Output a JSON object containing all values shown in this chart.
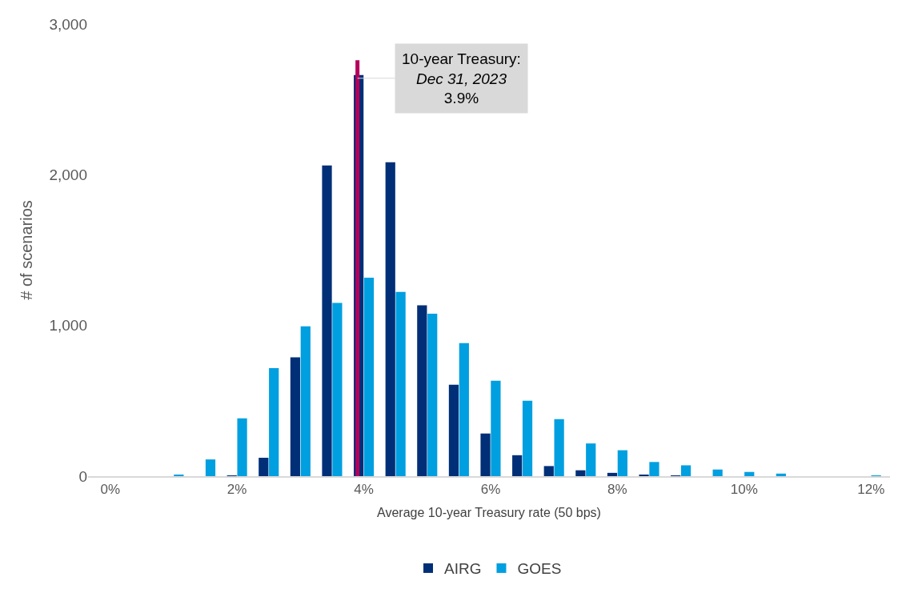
{
  "chart_data": {
    "type": "bar",
    "xlabel": "Average 10-year Treasury rate (50 bps)",
    "ylabel": "# of scenarios",
    "x": [
      0,
      0.5,
      1,
      1.5,
      2,
      2.5,
      3,
      3.5,
      4,
      4.5,
      5,
      5.5,
      6,
      6.5,
      7,
      7.5,
      8,
      8.5,
      9,
      9.5,
      10,
      10.5,
      11,
      11.5,
      12
    ],
    "series": [
      {
        "name": "AIRG",
        "color": "#002f77",
        "values": [
          0,
          0,
          0,
          0,
          3,
          122,
          789,
          2061,
          2661,
          2083,
          1133,
          606,
          283,
          139,
          67,
          39,
          22,
          8,
          2,
          0,
          0,
          0,
          0,
          0,
          0
        ]
      },
      {
        "name": "GOES",
        "color": "#009fe0",
        "values": [
          0,
          0,
          10,
          111,
          383,
          717,
          994,
          1150,
          1317,
          1222,
          1078,
          883,
          633,
          500,
          378,
          217,
          172,
          94,
          72,
          44,
          28,
          17,
          0,
          0,
          3
        ]
      }
    ],
    "xlim": [
      -0.35,
      12.3
    ],
    "xticks": [
      {
        "value": 0,
        "label": "0%"
      },
      {
        "value": 2,
        "label": "2%"
      },
      {
        "value": 4,
        "label": "4%"
      },
      {
        "value": 6,
        "label": "6%"
      },
      {
        "value": 8,
        "label": "8%"
      },
      {
        "value": 10,
        "label": "10%"
      },
      {
        "value": 12,
        "label": "12%"
      }
    ],
    "ylim": [
      0,
      3000
    ],
    "yticks": [
      0,
      {
        "value": 1000,
        "label": "1,000"
      },
      {
        "value": 2000,
        "label": "2,000"
      },
      {
        "value": 3000,
        "label": "3,000"
      }
    ],
    "ref_lines": [
      {
        "axis": "x",
        "value": 3.9,
        "label": "10-year Treasury:\nDec 31, 2023\n3.9%",
        "color": "#b5005b"
      }
    ],
    "legend": "bottom"
  }
}
